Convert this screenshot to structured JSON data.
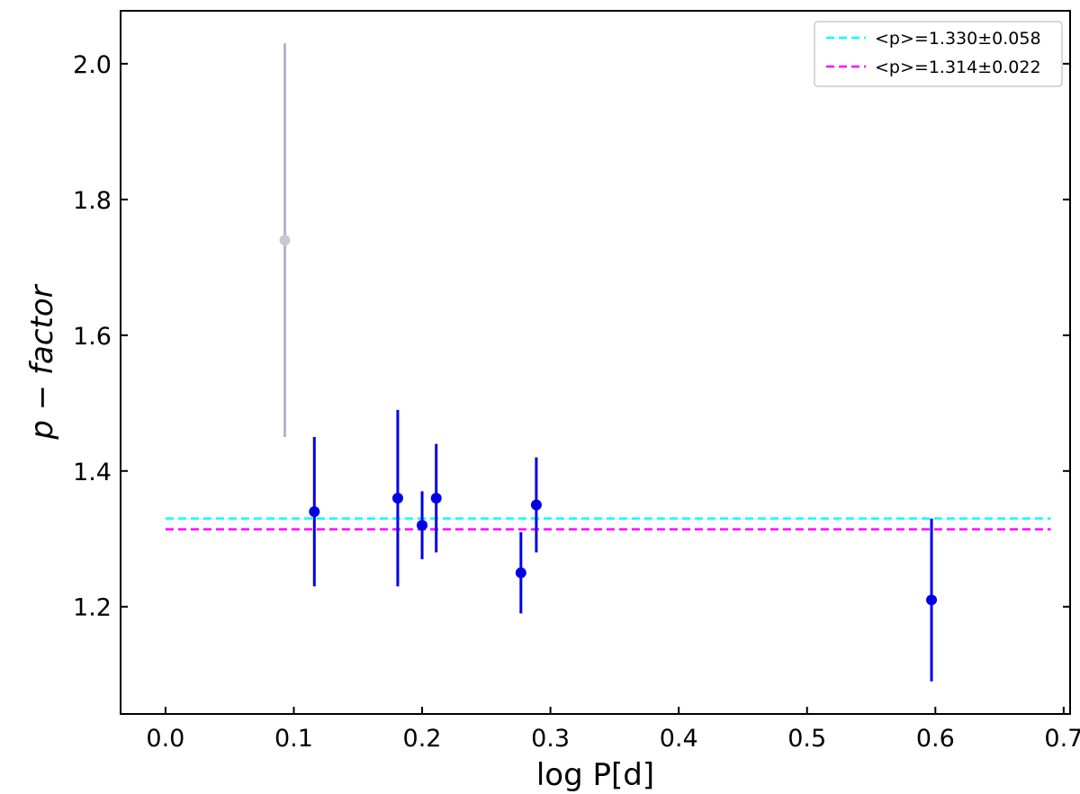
{
  "chart_data": {
    "type": "scatter",
    "xlabel": "log P[d]",
    "ylabel": "p − factor",
    "xlim": [
      -0.035,
      0.705
    ],
    "ylim": [
      1.042,
      2.078
    ],
    "xticks": [
      "0.0",
      "0.1",
      "0.2",
      "0.3",
      "0.4",
      "0.5",
      "0.6",
      "0.7"
    ],
    "xtick_values": [
      0.0,
      0.1,
      0.2,
      0.3,
      0.4,
      0.5,
      0.6,
      0.7
    ],
    "yticks": [
      "1.2",
      "1.4",
      "1.6",
      "1.8",
      "2.0"
    ],
    "ytick_values": [
      1.2,
      1.4,
      1.6,
      1.8,
      2.0
    ],
    "grid": false,
    "legend_position": "top-right",
    "series": [
      {
        "color": "#0000e6",
        "points": [
          {
            "x": 0.116,
            "y": 1.34,
            "ylow": 1.23,
            "yhigh": 1.45
          },
          {
            "x": 0.181,
            "y": 1.36,
            "ylow": 1.23,
            "yhigh": 1.49
          },
          {
            "x": 0.2,
            "y": 1.32,
            "ylow": 1.27,
            "yhigh": 1.37
          },
          {
            "x": 0.211,
            "y": 1.36,
            "ylow": 1.28,
            "yhigh": 1.44
          },
          {
            "x": 0.277,
            "y": 1.25,
            "ylow": 1.19,
            "yhigh": 1.31
          },
          {
            "x": 0.289,
            "y": 1.35,
            "ylow": 1.28,
            "yhigh": 1.42
          },
          {
            "x": 0.597,
            "y": 1.21,
            "ylow": 1.09,
            "yhigh": 1.33
          }
        ]
      },
      {
        "color": "#c8c8d0",
        "errcolor": "#b4b4cc",
        "points": [
          {
            "x": 0.093,
            "y": 1.74,
            "ylow": 1.45,
            "yhigh": 2.03
          }
        ]
      }
    ],
    "reference_lines": [
      {
        "name": "<p>=1.330±0.058",
        "y": 1.33,
        "xrange": [
          0.0,
          0.69
        ],
        "color": "#00ffff",
        "style": "dashed"
      },
      {
        "name": "<p>=1.314±0.022",
        "y": 1.314,
        "xrange": [
          0.0,
          0.69
        ],
        "color": "#ff00ff",
        "style": "dashed"
      }
    ]
  }
}
